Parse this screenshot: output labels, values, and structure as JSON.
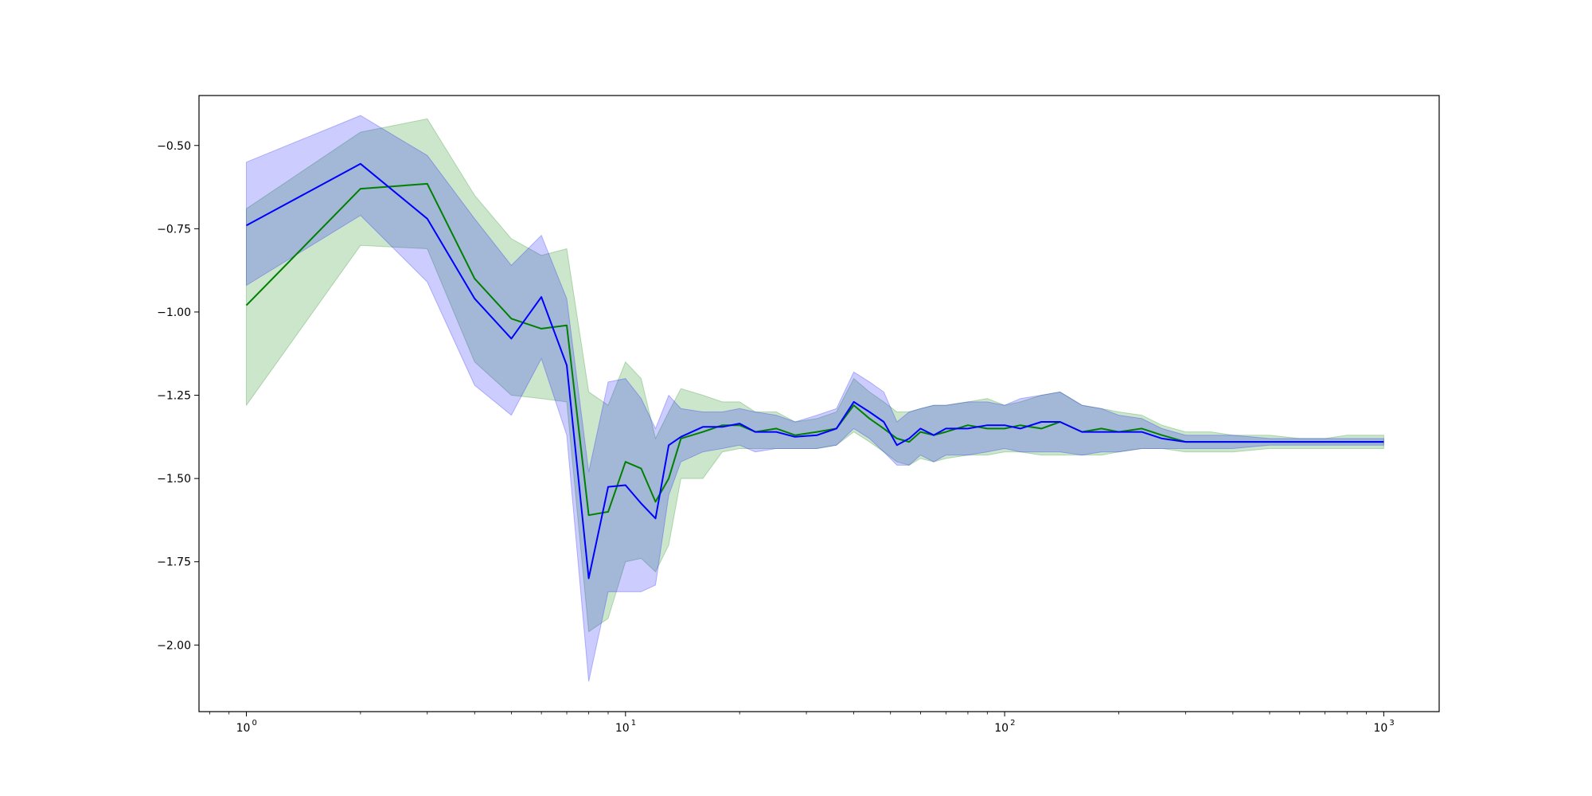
{
  "chart_data": {
    "type": "line",
    "title": "",
    "xlabel": "",
    "ylabel": "",
    "xscale": "log",
    "xlim": [
      0.75,
      1400
    ],
    "ylim": [
      -2.2,
      -0.35
    ],
    "grid": false,
    "legend": "none",
    "x_ticks": [
      {
        "value": 1,
        "base": "10",
        "exp": "0"
      },
      {
        "value": 10,
        "base": "10",
        "exp": "1"
      },
      {
        "value": 100,
        "base": "10",
        "exp": "2"
      },
      {
        "value": 1000,
        "base": "10",
        "exp": "3"
      }
    ],
    "y_ticks": [
      {
        "value": -0.5,
        "label": "−0.50"
      },
      {
        "value": -0.75,
        "label": "−0.75"
      },
      {
        "value": -1.0,
        "label": "−1.00"
      },
      {
        "value": -1.25,
        "label": "−1.25"
      },
      {
        "value": -1.5,
        "label": "−1.50"
      },
      {
        "value": -1.75,
        "label": "−1.75"
      },
      {
        "value": -2.0,
        "label": "−2.00"
      }
    ],
    "series": [
      {
        "color": "#008000",
        "band_color": "#008000",
        "band_opacity": 0.2,
        "x": [
          1,
          2,
          3,
          4,
          5,
          6,
          7,
          8,
          9,
          10,
          11,
          12,
          13,
          14,
          16,
          18,
          20,
          22,
          25,
          28,
          32,
          36,
          40,
          44,
          48,
          52,
          56,
          60,
          65,
          70,
          80,
          90,
          100,
          110,
          125,
          140,
          160,
          180,
          200,
          230,
          260,
          300,
          350,
          400,
          500,
          600,
          700,
          800,
          900,
          1000
        ],
        "y": [
          -0.98,
          -0.63,
          -0.615,
          -0.9,
          -1.02,
          -1.05,
          -1.04,
          -1.61,
          -1.6,
          -1.45,
          -1.47,
          -1.57,
          -1.5,
          -1.38,
          -1.36,
          -1.34,
          -1.34,
          -1.36,
          -1.35,
          -1.37,
          -1.36,
          -1.35,
          -1.28,
          -1.32,
          -1.35,
          -1.38,
          -1.39,
          -1.36,
          -1.37,
          -1.36,
          -1.34,
          -1.35,
          -1.35,
          -1.34,
          -1.35,
          -1.33,
          -1.36,
          -1.35,
          -1.36,
          -1.35,
          -1.37,
          -1.39,
          -1.39,
          -1.39,
          -1.39,
          -1.39,
          -1.39,
          -1.39,
          -1.39,
          -1.39
        ],
        "upper": [
          -0.69,
          -0.46,
          -0.42,
          -0.65,
          -0.78,
          -0.83,
          -0.81,
          -1.24,
          -1.28,
          -1.15,
          -1.2,
          -1.38,
          -1.3,
          -1.23,
          -1.25,
          -1.27,
          -1.27,
          -1.3,
          -1.3,
          -1.33,
          -1.32,
          -1.3,
          -1.2,
          -1.24,
          -1.27,
          -1.3,
          -1.3,
          -1.29,
          -1.28,
          -1.28,
          -1.27,
          -1.26,
          -1.28,
          -1.27,
          -1.25,
          -1.24,
          -1.28,
          -1.29,
          -1.3,
          -1.31,
          -1.34,
          -1.36,
          -1.36,
          -1.37,
          -1.37,
          -1.38,
          -1.38,
          -1.37,
          -1.37,
          -1.37
        ],
        "lower": [
          -1.28,
          -0.8,
          -0.81,
          -1.15,
          -1.25,
          -1.26,
          -1.27,
          -1.96,
          -1.92,
          -1.75,
          -1.74,
          -1.78,
          -1.7,
          -1.5,
          -1.5,
          -1.42,
          -1.41,
          -1.41,
          -1.41,
          -1.41,
          -1.41,
          -1.4,
          -1.36,
          -1.39,
          -1.42,
          -1.45,
          -1.46,
          -1.44,
          -1.45,
          -1.44,
          -1.43,
          -1.43,
          -1.42,
          -1.42,
          -1.43,
          -1.43,
          -1.43,
          -1.43,
          -1.42,
          -1.41,
          -1.41,
          -1.42,
          -1.42,
          -1.42,
          -1.41,
          -1.41,
          -1.41,
          -1.41,
          -1.41,
          -1.41
        ]
      },
      {
        "color": "#0000ff",
        "band_color": "#0000ff",
        "band_opacity": 0.2,
        "x": [
          1,
          2,
          3,
          4,
          5,
          6,
          7,
          8,
          9,
          10,
          11,
          12,
          13,
          14,
          16,
          18,
          20,
          22,
          25,
          28,
          32,
          36,
          40,
          44,
          48,
          52,
          56,
          60,
          65,
          70,
          80,
          90,
          100,
          110,
          125,
          140,
          160,
          180,
          200,
          230,
          260,
          300,
          350,
          400,
          500,
          600,
          700,
          800,
          900,
          1000
        ],
        "y": [
          -0.74,
          -0.555,
          -0.72,
          -0.96,
          -1.08,
          -0.955,
          -1.16,
          -1.8,
          -1.525,
          -1.52,
          -1.575,
          -1.62,
          -1.4,
          -1.375,
          -1.345,
          -1.345,
          -1.335,
          -1.36,
          -1.36,
          -1.375,
          -1.37,
          -1.35,
          -1.27,
          -1.3,
          -1.33,
          -1.4,
          -1.38,
          -1.35,
          -1.37,
          -1.35,
          -1.35,
          -1.34,
          -1.34,
          -1.35,
          -1.33,
          -1.33,
          -1.36,
          -1.36,
          -1.36,
          -1.36,
          -1.38,
          -1.39,
          -1.39,
          -1.39,
          -1.39,
          -1.39,
          -1.39,
          -1.39,
          -1.39,
          -1.39
        ],
        "upper": [
          -0.55,
          -0.41,
          -0.53,
          -0.72,
          -0.86,
          -0.77,
          -0.96,
          -1.48,
          -1.21,
          -1.2,
          -1.26,
          -1.35,
          -1.25,
          -1.29,
          -1.3,
          -1.3,
          -1.29,
          -1.3,
          -1.31,
          -1.33,
          -1.31,
          -1.29,
          -1.18,
          -1.21,
          -1.24,
          -1.33,
          -1.3,
          -1.29,
          -1.28,
          -1.28,
          -1.27,
          -1.27,
          -1.28,
          -1.26,
          -1.25,
          -1.24,
          -1.28,
          -1.29,
          -1.31,
          -1.32,
          -1.35,
          -1.37,
          -1.37,
          -1.37,
          -1.38,
          -1.38,
          -1.38,
          -1.38,
          -1.38,
          -1.38
        ],
        "lower": [
          -0.92,
          -0.71,
          -0.91,
          -1.22,
          -1.31,
          -1.14,
          -1.37,
          -2.11,
          -1.84,
          -1.84,
          -1.84,
          -1.82,
          -1.55,
          -1.45,
          -1.42,
          -1.41,
          -1.4,
          -1.42,
          -1.41,
          -1.41,
          -1.41,
          -1.4,
          -1.35,
          -1.38,
          -1.42,
          -1.46,
          -1.46,
          -1.43,
          -1.45,
          -1.43,
          -1.43,
          -1.42,
          -1.41,
          -1.42,
          -1.42,
          -1.42,
          -1.43,
          -1.42,
          -1.42,
          -1.41,
          -1.41,
          -1.41,
          -1.41,
          -1.41,
          -1.4,
          -1.4,
          -1.4,
          -1.4,
          -1.4,
          -1.4
        ]
      }
    ]
  }
}
